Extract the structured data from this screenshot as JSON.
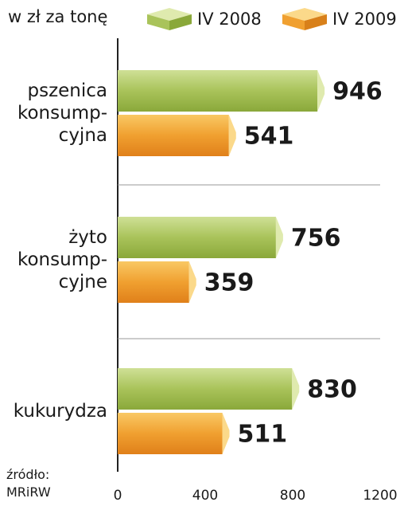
{
  "chart_data": {
    "type": "bar",
    "orientation": "horizontal",
    "title": "w zł za tonę",
    "categories": [
      "pszenica\nkonsump-\ncyjna",
      "żyto\nkonsump-\ncyjne",
      "kukurydza"
    ],
    "series": [
      {
        "name": "IV 2008",
        "color": "#a9c35a",
        "values": [
          946,
          756,
          830
        ]
      },
      {
        "name": "IV 2009",
        "color": "#f0a030",
        "values": [
          541,
          359,
          511
        ]
      }
    ],
    "xlim": [
      0,
      1200
    ],
    "xticks": [
      0,
      400,
      800,
      1200
    ],
    "source": "źródło:\nMRiRW"
  }
}
